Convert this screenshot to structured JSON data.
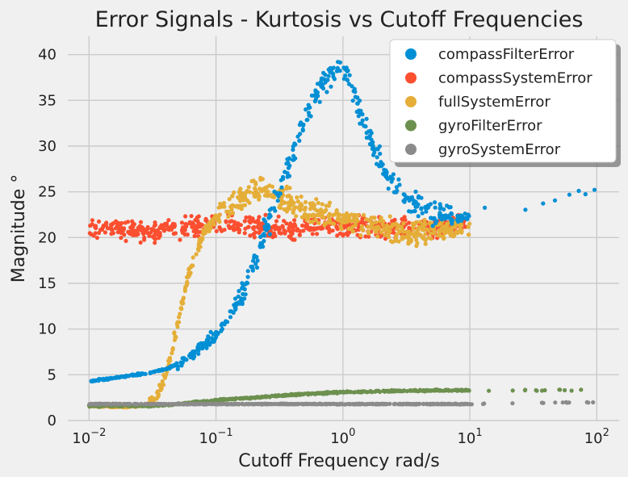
{
  "chart_data": {
    "type": "scatter",
    "title": "Error Signals - Kurtosis vs Cutoff Frequencies",
    "xlabel": "Cutoff Frequency rad/s",
    "ylabel": "Magnitude °",
    "xscale": "log",
    "xlim": [
      0.0068,
      150
    ],
    "ylim": [
      0,
      42
    ],
    "xticks": [
      {
        "base": "10",
        "exp": "−2",
        "value": 0.01
      },
      {
        "base": "10",
        "exp": "−1",
        "value": 0.1
      },
      {
        "base": "10",
        "exp": "0",
        "value": 1
      },
      {
        "base": "10",
        "exp": "1",
        "value": 10
      },
      {
        "base": "10",
        "exp": "2",
        "value": 100
      }
    ],
    "yticks": [
      0,
      5,
      10,
      15,
      20,
      25,
      30,
      35,
      40
    ],
    "grid": true,
    "legend_position": "top-right",
    "series": [
      {
        "name": "compassFilterError",
        "color": "#008fd5",
        "x": [
          0.01,
          0.015,
          0.02,
          0.03,
          0.04,
          0.05,
          0.06,
          0.07,
          0.08,
          0.1,
          0.12,
          0.15,
          0.18,
          0.2,
          0.25,
          0.3,
          0.4,
          0.5,
          0.6,
          0.7,
          0.8,
          0.9,
          1.0,
          1.1,
          1.3,
          1.5,
          2,
          2.5,
          3,
          4,
          5,
          6,
          8,
          10,
          15,
          20,
          30,
          50,
          70,
          100
        ],
        "y": [
          4.3,
          4.6,
          4.9,
          5.2,
          5.6,
          6.2,
          6.8,
          7.5,
          8.3,
          9.5,
          11,
          13,
          15.5,
          17.5,
          21,
          24.5,
          29,
          33,
          35.5,
          37,
          37.5,
          38.5,
          39,
          37.5,
          35,
          32,
          28,
          26,
          24.5,
          23.2,
          22.8,
          22.5,
          22.2,
          22.3,
          22.6,
          23,
          23.5,
          24.2,
          24.8,
          25.2
        ]
      },
      {
        "name": "compassSystemError",
        "color": "#fc4f30",
        "x": [
          0.01,
          0.015,
          0.02,
          0.03,
          0.05,
          0.08,
          0.1,
          0.2,
          0.3,
          0.5,
          1,
          2,
          3,
          5,
          8,
          10
        ],
        "y": [
          21,
          21.2,
          20.8,
          20.5,
          21,
          21.3,
          21.5,
          21.2,
          21,
          21.2,
          21.3,
          21.2,
          21,
          21.1,
          21.4,
          21.8
        ]
      },
      {
        "name": "fullSystemError",
        "color": "#e5ae38",
        "x": [
          0.01,
          0.015,
          0.02,
          0.025,
          0.03,
          0.035,
          0.04,
          0.045,
          0.05,
          0.055,
          0.06,
          0.07,
          0.08,
          0.09,
          0.1,
          0.12,
          0.15,
          0.2,
          0.25,
          0.3,
          0.35,
          0.4,
          0.5,
          0.7,
          1,
          1.5,
          2,
          3,
          5,
          7,
          10
        ],
        "y": [
          1.6,
          1.5,
          1.5,
          1.6,
          1.9,
          3,
          5,
          7.8,
          10.5,
          13,
          15.5,
          18.5,
          20.5,
          21.5,
          22,
          23,
          24,
          25,
          25.5,
          24.5,
          24,
          23.5,
          23,
          22.5,
          22,
          21.5,
          21,
          20.5,
          20.8,
          21,
          21
        ]
      },
      {
        "name": "gyroFilterError",
        "color": "#6d904f",
        "x": [
          0.01,
          0.02,
          0.03,
          0.05,
          0.07,
          0.1,
          0.15,
          0.2,
          0.3,
          0.5,
          0.7,
          1,
          2,
          3,
          5,
          10,
          20,
          50,
          100
        ],
        "y": [
          1.6,
          1.6,
          1.6,
          1.8,
          2,
          2.2,
          2.4,
          2.5,
          2.7,
          2.9,
          3,
          3.1,
          3.2,
          3.25,
          3.3,
          3.3,
          3.3,
          3.3,
          3.3
        ]
      },
      {
        "name": "gyroSystemError",
        "color": "#8b8b8b",
        "x": [
          0.01,
          0.03,
          0.1,
          0.3,
          1,
          3,
          10,
          30,
          100
        ],
        "y": [
          1.8,
          1.8,
          1.8,
          1.8,
          1.8,
          1.8,
          1.8,
          1.9,
          2.0
        ]
      }
    ]
  }
}
